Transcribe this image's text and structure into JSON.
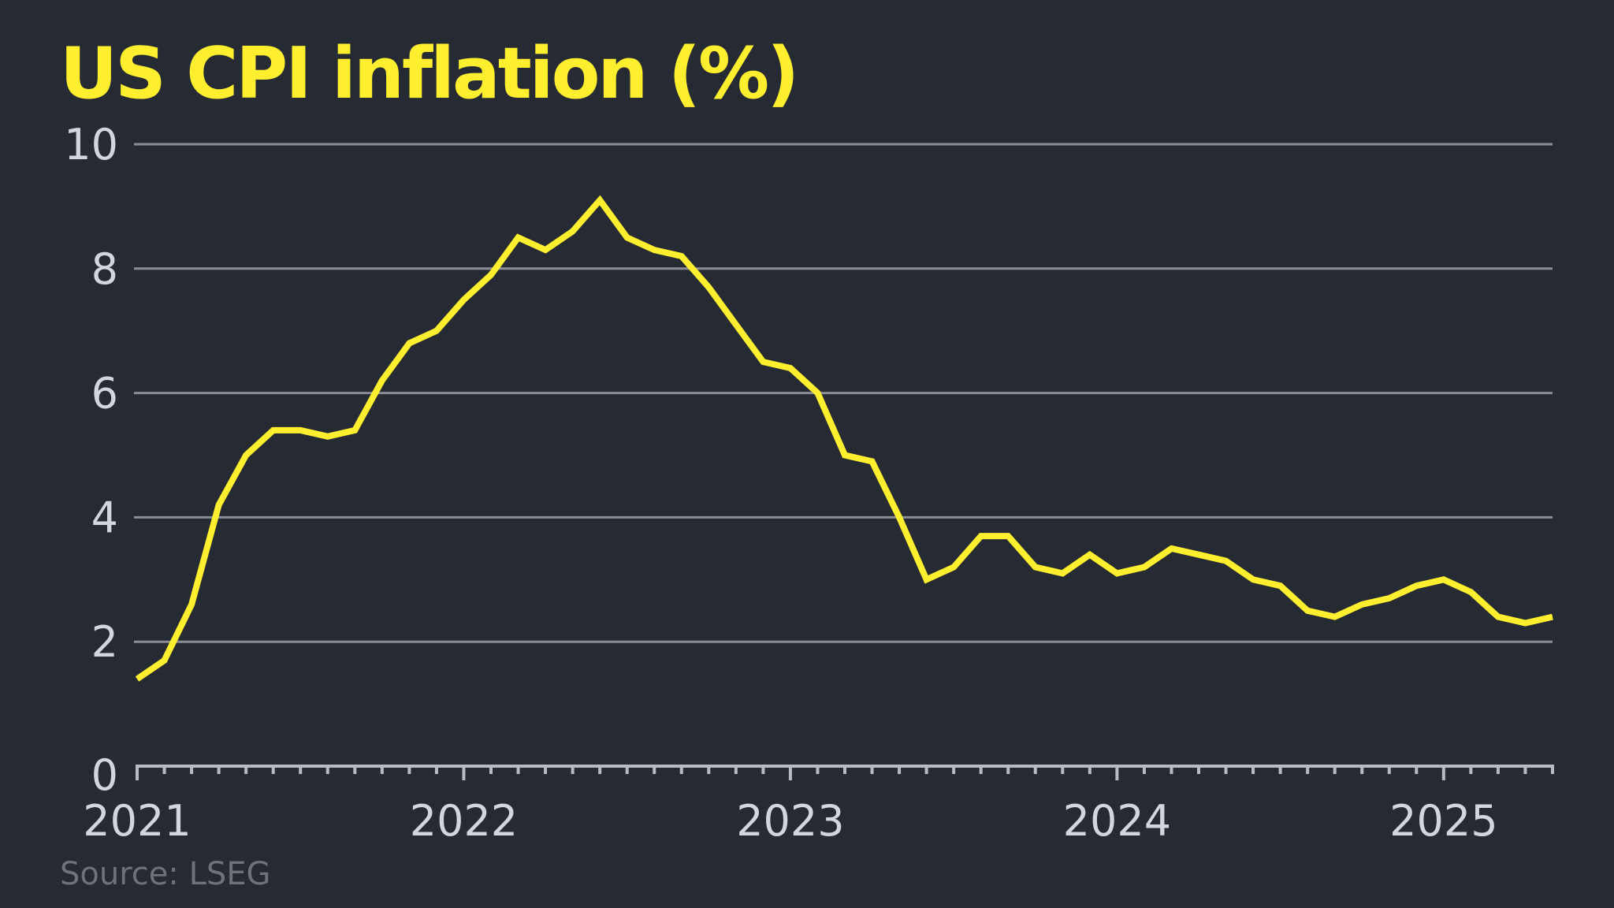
{
  "chart_data": {
    "type": "line",
    "title": "US CPI inflation (%)",
    "source": "Source: LSEG",
    "xlabel": "",
    "ylabel": "",
    "ylim": [
      0,
      10
    ],
    "y_ticks": [
      0,
      2,
      4,
      6,
      8,
      10
    ],
    "x_tick_labels": [
      "2021",
      "2022",
      "2023",
      "2024",
      "2025"
    ],
    "grid": true,
    "series": [
      {
        "color": "#ffef2e",
        "x": [
          "2021-01",
          "2021-02",
          "2021-03",
          "2021-04",
          "2021-05",
          "2021-06",
          "2021-07",
          "2021-08",
          "2021-09",
          "2021-10",
          "2021-11",
          "2021-12",
          "2022-01",
          "2022-02",
          "2022-03",
          "2022-04",
          "2022-05",
          "2022-06",
          "2022-07",
          "2022-08",
          "2022-09",
          "2022-10",
          "2022-11",
          "2022-12",
          "2023-01",
          "2023-02",
          "2023-03",
          "2023-04",
          "2023-05",
          "2023-06",
          "2023-07",
          "2023-08",
          "2023-09",
          "2023-10",
          "2023-11",
          "2023-12",
          "2024-01",
          "2024-02",
          "2024-03",
          "2024-04",
          "2024-05",
          "2024-06",
          "2024-07",
          "2024-08",
          "2024-09",
          "2024-10",
          "2024-11",
          "2024-12",
          "2025-01",
          "2025-02",
          "2025-03",
          "2025-04",
          "2025-05"
        ],
        "values": [
          1.4,
          1.7,
          2.6,
          4.2,
          5.0,
          5.4,
          5.4,
          5.3,
          5.4,
          6.2,
          6.8,
          7.0,
          7.5,
          7.9,
          8.5,
          8.3,
          8.6,
          9.1,
          8.5,
          8.3,
          8.2,
          7.7,
          7.1,
          6.5,
          6.4,
          6.0,
          5.0,
          4.9,
          4.0,
          3.0,
          3.2,
          3.7,
          3.7,
          3.2,
          3.1,
          3.4,
          3.1,
          3.2,
          3.5,
          3.4,
          3.3,
          3.0,
          2.9,
          2.5,
          2.4,
          2.6,
          2.7,
          2.9,
          3.0,
          2.8,
          2.4,
          2.3,
          2.4
        ]
      }
    ]
  }
}
